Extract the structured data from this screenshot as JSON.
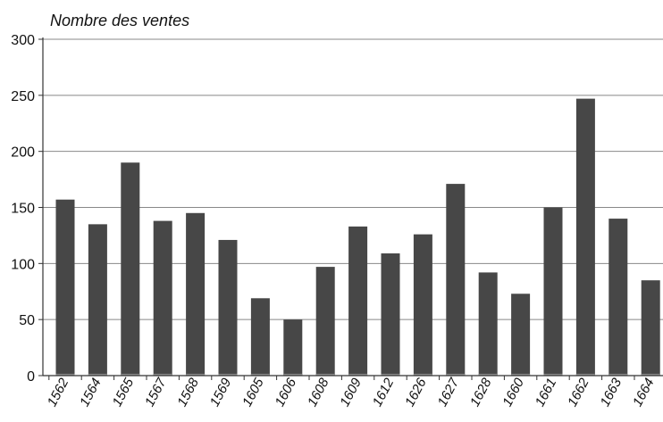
{
  "chart_data": {
    "type": "bar",
    "title": "",
    "xlabel": "",
    "ylabel": "Nombre des ventes",
    "categories": [
      "1562",
      "1564",
      "1565",
      "1567",
      "1568",
      "1569",
      "1605",
      "1606",
      "1608",
      "1609",
      "1612",
      "1626",
      "1627",
      "1628",
      "1660",
      "1661",
      "1662",
      "1663",
      "1664"
    ],
    "values": [
      157,
      135,
      190,
      138,
      145,
      121,
      69,
      50,
      97,
      133,
      109,
      126,
      171,
      92,
      73,
      150,
      247,
      140,
      85
    ],
    "ylim": [
      0,
      300
    ],
    "yticks": [
      0,
      50,
      100,
      150,
      200,
      250,
      300
    ],
    "grid": true,
    "legend": "none",
    "colors": {
      "bar": "#474747",
      "bar_base": "#8a8a8a",
      "grid": "#888888",
      "axis": "#333333"
    }
  }
}
